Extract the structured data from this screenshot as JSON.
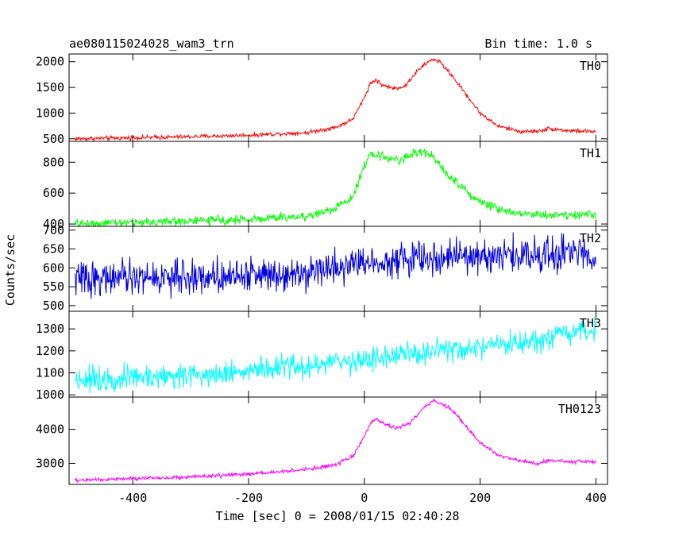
{
  "header": {
    "title": "ae080115024028_wam3_trn",
    "bin_time": "Bin time: 1.0 s"
  },
  "chart_data": {
    "type": "line",
    "title": "ae080115024028_wam3_trn",
    "xlabel": "Time [sec] 0 = 2008/01/15 02:40:28",
    "ylabel": "Counts/sec",
    "xlim": [
      -510,
      420
    ],
    "xticks": [
      -400,
      -200,
      0,
      200,
      400
    ],
    "grid": false,
    "panels": [
      {
        "name": "TH0",
        "color": "#ff0000",
        "ylim": [
          450,
          2150
        ],
        "yticks": [
          500,
          1000,
          1500,
          2000
        ],
        "noise": 25,
        "x": [
          -500,
          -400,
          -300,
          -200,
          -100,
          -50,
          -20,
          0,
          10,
          20,
          30,
          50,
          70,
          90,
          110,
          120,
          130,
          150,
          180,
          200,
          230,
          270,
          300,
          320,
          350,
          400
        ],
        "values": [
          500,
          520,
          540,
          570,
          620,
          720,
          880,
          1300,
          1570,
          1650,
          1550,
          1480,
          1520,
          1800,
          2000,
          2050,
          2000,
          1750,
          1300,
          1000,
          750,
          640,
          650,
          700,
          660,
          640
        ]
      },
      {
        "name": "TH1",
        "color": "#00ff00",
        "ylim": [
          385,
          935
        ],
        "yticks": [
          400,
          600,
          800
        ],
        "noise": 18,
        "x": [
          -500,
          -400,
          -300,
          -200,
          -100,
          -50,
          -20,
          0,
          10,
          20,
          40,
          60,
          80,
          100,
          120,
          150,
          200,
          250,
          300,
          350,
          400
        ],
        "values": [
          400,
          410,
          420,
          430,
          450,
          500,
          580,
          780,
          840,
          850,
          830,
          810,
          850,
          870,
          830,
          700,
          540,
          480,
          460,
          460,
          460
        ]
      },
      {
        "name": "TH2",
        "color": "#0000dd",
        "ylim": [
          485,
          710
        ],
        "yticks": [
          500,
          550,
          600,
          650,
          700
        ],
        "noise": 28,
        "x": [
          -500,
          -300,
          -100,
          0,
          100,
          200,
          300,
          400
        ],
        "values": [
          572,
          575,
          590,
          615,
          625,
          630,
          635,
          640
        ]
      },
      {
        "name": "TH3",
        "color": "#00ffff",
        "ylim": [
          990,
          1380
        ],
        "yticks": [
          1000,
          1100,
          1200,
          1300
        ],
        "noise": 35,
        "x": [
          -500,
          -300,
          -100,
          0,
          100,
          200,
          300,
          400
        ],
        "values": [
          1070,
          1090,
          1130,
          1160,
          1190,
          1210,
          1240,
          1300
        ]
      },
      {
        "name": "TH0123",
        "color": "#ff00ff",
        "ylim": [
          2380,
          4950
        ],
        "yticks": [
          3000,
          4000
        ],
        "noise": 35,
        "x": [
          -500,
          -400,
          -300,
          -200,
          -100,
          -50,
          -20,
          0,
          10,
          20,
          40,
          60,
          80,
          100,
          120,
          150,
          200,
          230,
          270,
          300,
          320,
          350,
          400
        ],
        "values": [
          2500,
          2550,
          2600,
          2680,
          2820,
          2950,
          3200,
          3800,
          4150,
          4300,
          4100,
          4050,
          4200,
          4600,
          4850,
          4600,
          3600,
          3250,
          3080,
          3000,
          3100,
          3050,
          3050
        ]
      }
    ]
  }
}
